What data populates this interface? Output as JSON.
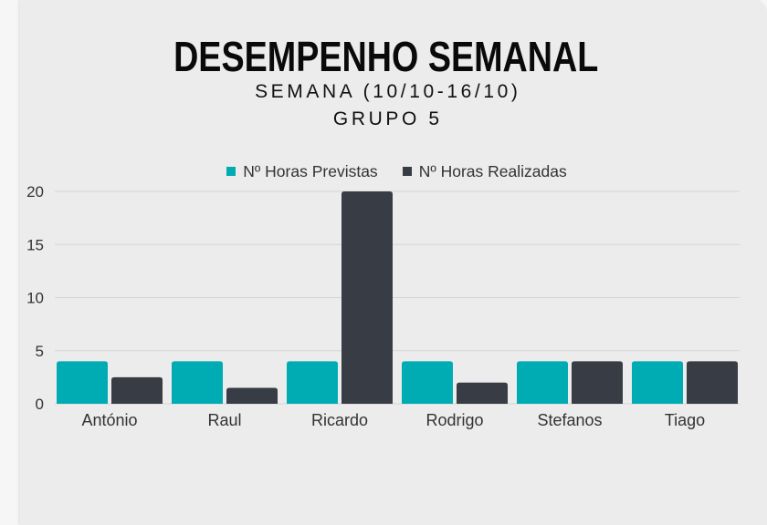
{
  "colors": {
    "background": "#ececec",
    "text": "#333333",
    "grid": "#d3d3d3",
    "previstas": "#00acb4",
    "realizadas": "#383c44"
  },
  "chart_data": {
    "type": "bar",
    "title": "DESEMPENHO SEMANAL",
    "subtitle": [
      "SEMANA (10/10-16/10)",
      "GRUPO 5"
    ],
    "categories": [
      "António",
      "Raul",
      "Ricardo",
      "Rodrigo",
      "Stefanos",
      "Tiago"
    ],
    "series": [
      {
        "name": "Nº Horas Previstas",
        "values": [
          4,
          4,
          4,
          4,
          4,
          4
        ],
        "color": "#00acb4"
      },
      {
        "name": "Nº Horas Realizadas",
        "values": [
          2.5,
          1.5,
          20,
          2,
          4,
          4
        ],
        "color": "#383c44"
      }
    ],
    "xlabel": "",
    "ylabel": "",
    "ylim": [
      0,
      20
    ],
    "yticks": [
      0,
      5,
      10,
      15,
      20
    ],
    "grid": true,
    "legend": "top"
  }
}
